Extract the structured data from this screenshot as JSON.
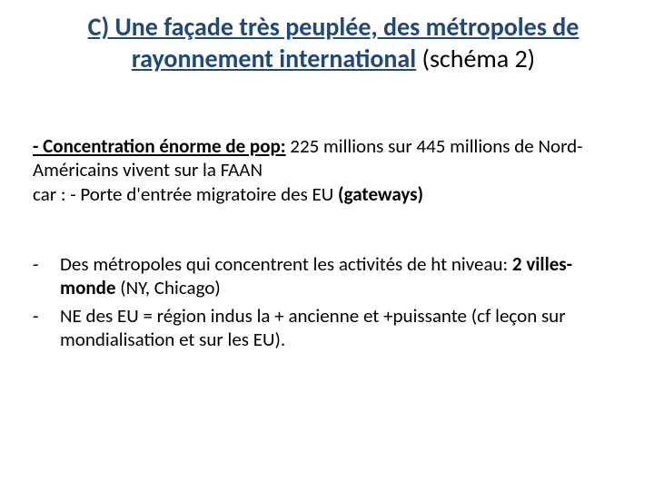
{
  "colors": {
    "title": "#1f497d",
    "body": "#000000",
    "background": "#ffffff"
  },
  "title": {
    "part_bold_underline": "C) Une façade très peuplée, des métropoles de rayonnement international",
    "part_plain": " (schéma 2)",
    "fontsize": 28
  },
  "para1": {
    "lead": "- Concentration énorme de pop:",
    "rest1": " 225 millions sur 445 millions de Nord-Américains vivent sur la FAAN",
    "line2_pre": " car : - Porte d'entrée migratoire des EU ",
    "line2_bold": "(gateways)",
    "fontsize": 21
  },
  "bullets": {
    "dash": "-",
    "b1_pre": "Des métropoles qui concentrent les activités de ht niveau: ",
    "b1_bold": "2 villes-monde",
    "b1_post": " (NY, Chicago)",
    "b2": "NE des EU = région indus la + ancienne et +puissante (cf leçon sur mondialisation et sur les EU).",
    "fontsize": 21
  }
}
